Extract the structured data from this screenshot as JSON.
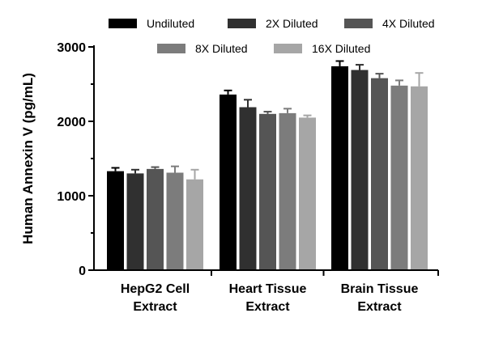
{
  "chart_data": {
    "type": "bar",
    "ylabel": "Human Annexin V (pg/mL)",
    "xlabel": "",
    "ylim": [
      0,
      3000
    ],
    "yticks": [
      0,
      1000,
      2000,
      3000
    ],
    "grid": false,
    "legend_position": "top",
    "categories": [
      [
        "HepG2 Cell",
        "Extract"
      ],
      [
        "Heart Tissue",
        "Extract"
      ],
      [
        "Brain Tissue",
        "Extract"
      ]
    ],
    "series": [
      {
        "name": "Undiluted",
        "color": "#000000",
        "values": [
          1330,
          2360,
          2740
        ],
        "errors": [
          45,
          55,
          70
        ]
      },
      {
        "name": "2X Diluted",
        "color": "#303030",
        "values": [
          1300,
          2190,
          2690
        ],
        "errors": [
          50,
          100,
          70
        ]
      },
      {
        "name": "4X Diluted",
        "color": "#555555",
        "values": [
          1360,
          2100,
          2580
        ],
        "errors": [
          25,
          30,
          60
        ]
      },
      {
        "name": "8X Diluted",
        "color": "#7c7c7c",
        "values": [
          1310,
          2110,
          2480
        ],
        "errors": [
          85,
          60,
          70
        ]
      },
      {
        "name": "16X Diluted",
        "color": "#a6a6a6",
        "values": [
          1220,
          2050,
          2470
        ],
        "errors": [
          130,
          30,
          180
        ]
      }
    ]
  }
}
